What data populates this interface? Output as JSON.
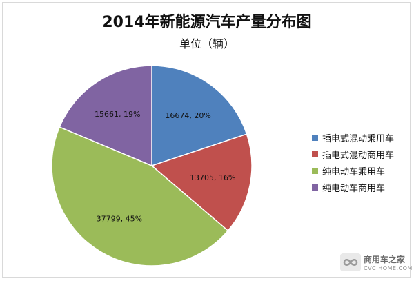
{
  "chart_data": {
    "type": "pie",
    "title": "2014年新能源汽车产量分布图",
    "subtitle": "单位（辆）",
    "legend_position": "right",
    "slices": [
      {
        "name": "插电式混动乘用车",
        "value": 16674,
        "percent": 20,
        "label": "16674, 20%",
        "color": "#4f81bd"
      },
      {
        "name": "插电式混动商用车",
        "value": 13705,
        "percent": 16,
        "label": "13705, 16%",
        "color": "#c0504d"
      },
      {
        "name": "纯电动车乘用车",
        "value": 37799,
        "percent": 45,
        "label": "37799, 45%",
        "color": "#9bbb59"
      },
      {
        "name": "纯电动车商用车",
        "value": 15661,
        "percent": 19,
        "label": "15661, 19%",
        "color": "#8064a2"
      }
    ]
  },
  "watermark": {
    "name": "商用车之家",
    "domain": "CVC HOME.COM"
  }
}
